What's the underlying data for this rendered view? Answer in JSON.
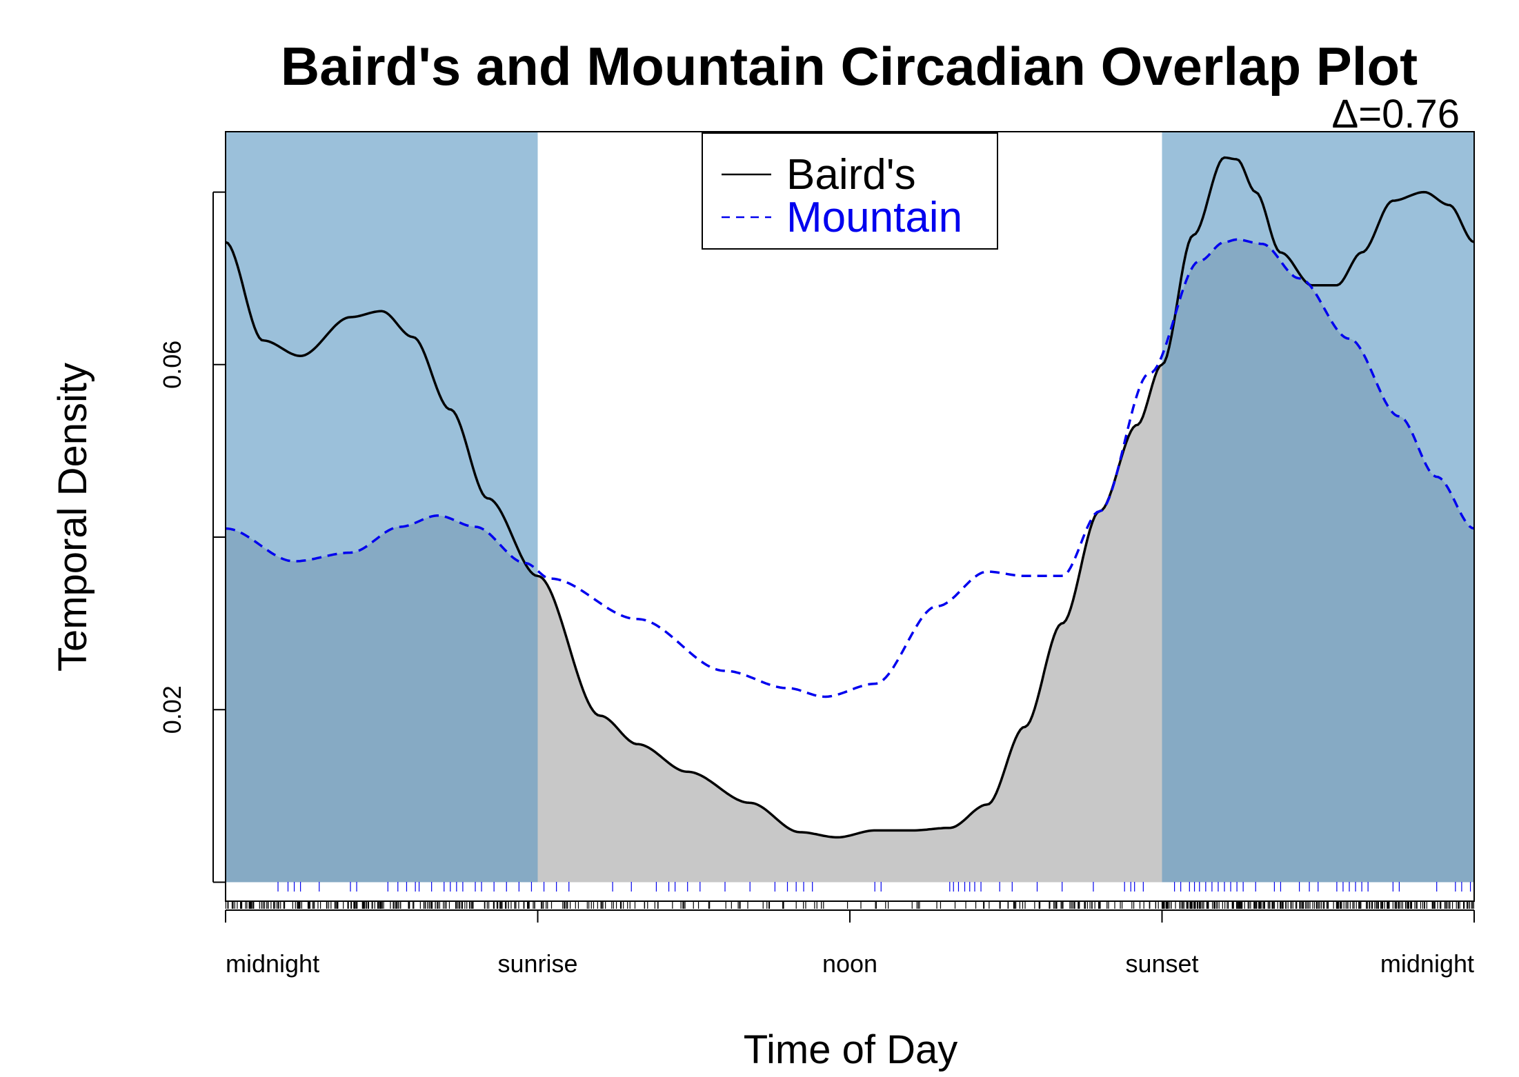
{
  "chart_data": {
    "type": "line",
    "title": "Baird's and Mountain Circadian Overlap Plot",
    "overlap_stat": "Δ=0.76",
    "xlabel": "Time of Day",
    "ylabel": "Temporal Density",
    "x_ticks": [
      {
        "x": 0,
        "label": "midnight"
      },
      {
        "x": 0.25,
        "label": "sunrise"
      },
      {
        "x": 0.5,
        "label": "noon"
      },
      {
        "x": 0.75,
        "label": "sunset"
      },
      {
        "x": 1,
        "label": "midnight"
      }
    ],
    "y_ticks": [
      {
        "y": 0.02,
        "label": "0.02"
      },
      {
        "y": 0.06,
        "label": "0.06"
      }
    ],
    "xlim": [
      0,
      1
    ],
    "ylim": [
      -0.0022,
      0.087
    ],
    "night_shading": [
      [
        0,
        0.25
      ],
      [
        0.75,
        1
      ]
    ],
    "overlap_fill_color": "#c8c8c8",
    "night_color": "#9bc0da",
    "night_overlap_color": "#86aac4",
    "legend_position": "top-center",
    "series": [
      {
        "name": "Baird's",
        "color": "#000000",
        "style": "solid",
        "x": [
          0,
          0.03,
          0.06,
          0.1,
          0.125,
          0.15,
          0.18,
          0.21,
          0.25,
          0.3,
          0.33,
          0.37,
          0.42,
          0.46,
          0.49,
          0.52,
          0.55,
          0.58,
          0.61,
          0.64,
          0.67,
          0.7,
          0.73,
          0.75,
          0.775,
          0.8,
          0.81,
          0.825,
          0.845,
          0.87,
          0.89,
          0.91,
          0.935,
          0.96,
          0.98,
          1
        ],
        "y": [
          0.0742,
          0.0628,
          0.061,
          0.0655,
          0.0662,
          0.0632,
          0.0548,
          0.0445,
          0.0355,
          0.0193,
          0.016,
          0.0128,
          0.0092,
          0.0058,
          0.0052,
          0.006,
          0.006,
          0.0063,
          0.009,
          0.018,
          0.03,
          0.043,
          0.053,
          0.06,
          0.075,
          0.084,
          0.0838,
          0.08,
          0.073,
          0.0692,
          0.0692,
          0.073,
          0.079,
          0.08,
          0.0785,
          0.0742
        ]
      },
      {
        "name": "Mountain",
        "color": "#0000ee",
        "style": "dashed",
        "x": [
          0,
          0.055,
          0.1,
          0.14,
          0.17,
          0.2,
          0.24,
          0.26,
          0.33,
          0.4,
          0.45,
          0.48,
          0.52,
          0.57,
          0.61,
          0.64,
          0.67,
          0.7,
          0.74,
          0.78,
          0.8,
          0.81,
          0.83,
          0.86,
          0.9,
          0.94,
          0.97,
          1
        ],
        "y": [
          0.041,
          0.0372,
          0.0382,
          0.0412,
          0.0425,
          0.0412,
          0.037,
          0.0352,
          0.0305,
          0.0245,
          0.0225,
          0.0215,
          0.023,
          0.032,
          0.036,
          0.0355,
          0.0355,
          0.043,
          0.059,
          0.072,
          0.0742,
          0.0745,
          0.074,
          0.07,
          0.063,
          0.054,
          0.047,
          0.041
        ]
      }
    ],
    "rugs": [
      {
        "series": "Mountain",
        "color": "#0000ee",
        "x": [
          0.042,
          0.05,
          0.055,
          0.06,
          0.075,
          0.1,
          0.105,
          0.13,
          0.138,
          0.145,
          0.152,
          0.155,
          0.165,
          0.175,
          0.18,
          0.185,
          0.19,
          0.2,
          0.205,
          0.215,
          0.225,
          0.235,
          0.245,
          0.255,
          0.265,
          0.275,
          0.31,
          0.325,
          0.345,
          0.355,
          0.36,
          0.37,
          0.38,
          0.4,
          0.42,
          0.44,
          0.45,
          0.457,
          0.463,
          0.47,
          0.52,
          0.525,
          0.58,
          0.583,
          0.587,
          0.592,
          0.596,
          0.6,
          0.605,
          0.62,
          0.63,
          0.65,
          0.67,
          0.695,
          0.72,
          0.725,
          0.728,
          0.735,
          0.76,
          0.765,
          0.772,
          0.776,
          0.78,
          0.785,
          0.79,
          0.795,
          0.8,
          0.805,
          0.81,
          0.815,
          0.825,
          0.84,
          0.845,
          0.86,
          0.868,
          0.875,
          0.89,
          0.895,
          0.9,
          0.905,
          0.91,
          0.915,
          0.935,
          0.94,
          0.97,
          0.985,
          0.99,
          0.997
        ]
      },
      {
        "series": "Baird's",
        "color": "#000000",
        "density_profile": [
          {
            "x_range": [
              0,
              0.25
            ],
            "count": 190
          },
          {
            "x_range": [
              0.25,
              0.38
            ],
            "count": 45
          },
          {
            "x_range": [
              0.38,
              0.62
            ],
            "count": 40
          },
          {
            "x_range": [
              0.62,
              0.75
            ],
            "count": 60
          },
          {
            "x_range": [
              0.75,
              1
            ],
            "count": 260
          }
        ]
      }
    ]
  }
}
